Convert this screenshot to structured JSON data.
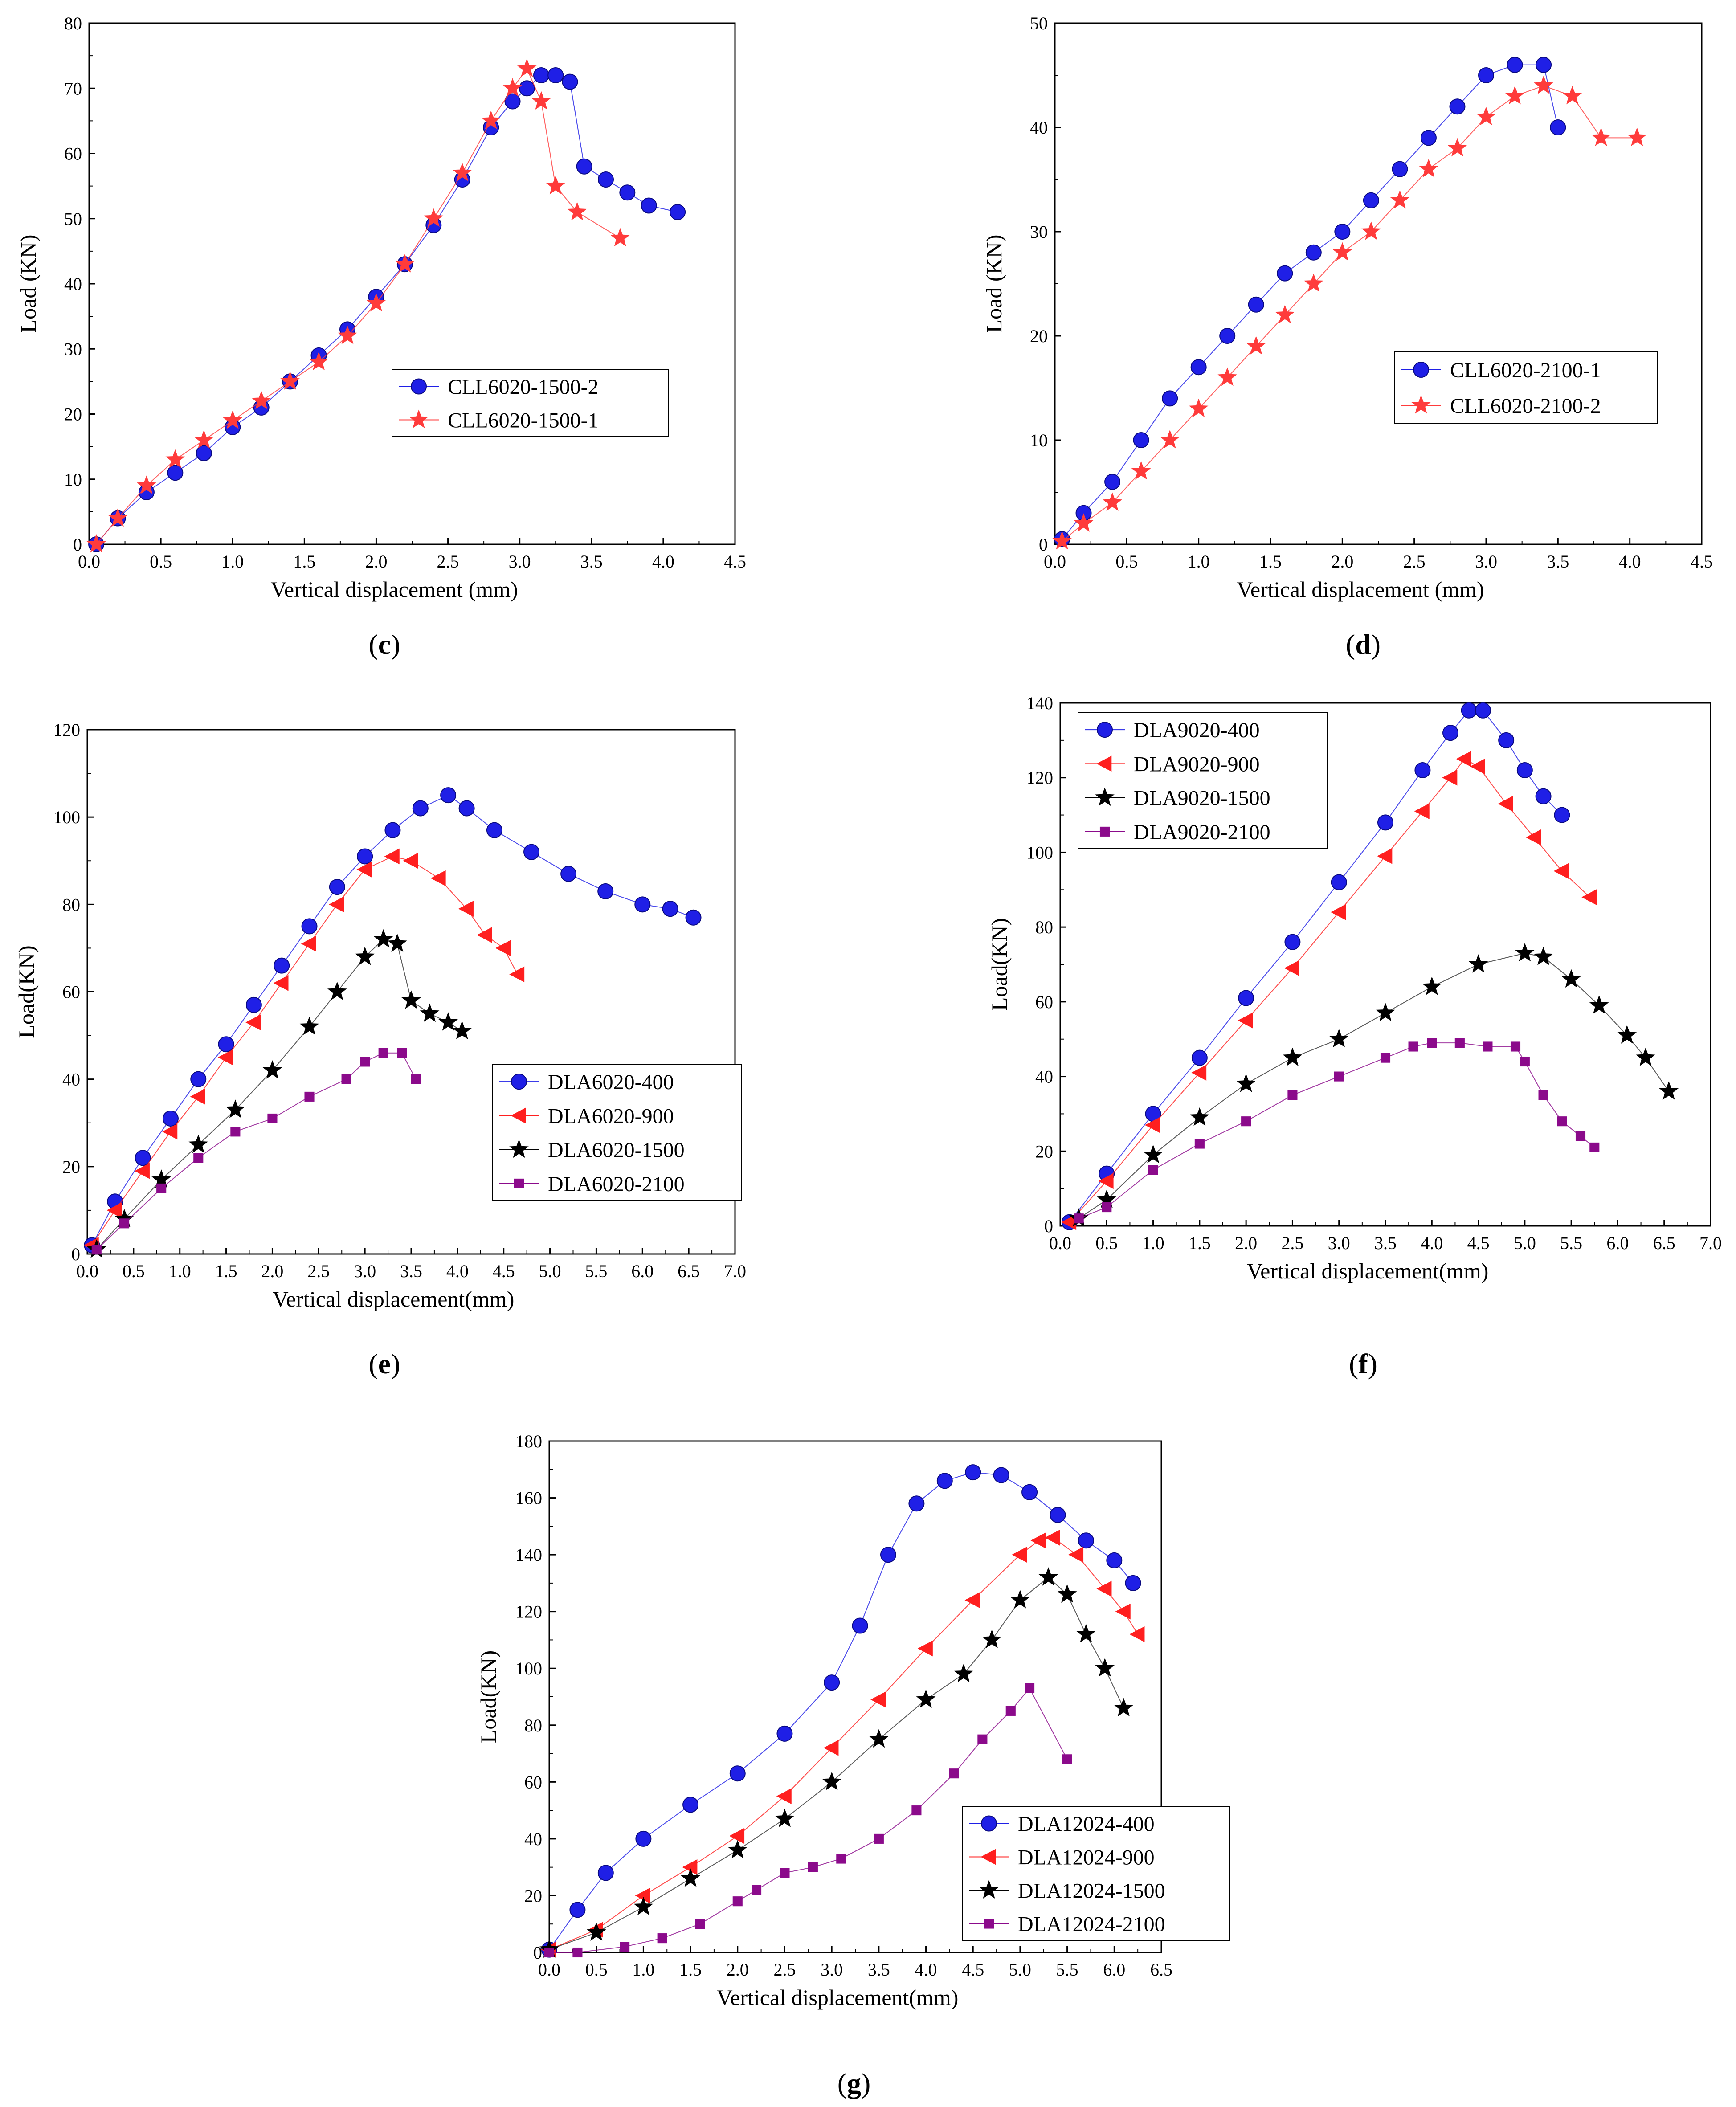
{
  "chart_data": [
    {
      "type": "line",
      "panel": "c",
      "xlabel": "Vertical displacement (mm)",
      "ylabel": "Load (KN)",
      "xlim": [
        0,
        4.5
      ],
      "ylim": [
        0,
        80
      ],
      "xticks": [
        0.0,
        0.5,
        1.0,
        1.5,
        2.0,
        2.5,
        3.0,
        3.5,
        4.0,
        4.5
      ],
      "xtick_labels": [
        "0.0",
        "0.5",
        "1.0",
        "1.5",
        "2.0",
        "2.5",
        "3.0",
        "3.5",
        "4.0",
        "4.5"
      ],
      "yticks": [
        0,
        10,
        20,
        30,
        40,
        50,
        60,
        70,
        80
      ],
      "ytick_labels": [
        "0",
        "10",
        "20",
        "30",
        "40",
        "50",
        "60",
        "70",
        "80"
      ],
      "legend_position": "center-right",
      "series": [
        {
          "name": "CLL6020-1500-2",
          "color": "#1f1fe6",
          "marker": "circle",
          "x": [
            0.05,
            0.2,
            0.4,
            0.6,
            0.8,
            1.0,
            1.2,
            1.4,
            1.6,
            1.8,
            2.0,
            2.2,
            2.4,
            2.6,
            2.8,
            2.95,
            3.05,
            3.15,
            3.25,
            3.35,
            3.45,
            3.6,
            3.75,
            3.9,
            4.1
          ],
          "y": [
            0,
            4,
            8,
            11,
            14,
            18,
            21,
            25,
            29,
            33,
            38,
            43,
            49,
            56,
            64,
            68,
            70,
            72,
            72,
            71,
            58,
            56,
            54,
            52,
            51
          ]
        },
        {
          "name": "CLL6020-1500-1",
          "color": "#ff3b3b",
          "marker": "star",
          "x": [
            0.05,
            0.2,
            0.4,
            0.6,
            0.8,
            1.0,
            1.2,
            1.4,
            1.6,
            1.8,
            2.0,
            2.2,
            2.4,
            2.6,
            2.8,
            2.95,
            3.05,
            3.15,
            3.25,
            3.4,
            3.7
          ],
          "y": [
            0,
            4,
            9,
            13,
            16,
            19,
            22,
            25,
            28,
            32,
            37,
            43,
            50,
            57,
            65,
            70,
            73,
            68,
            55,
            51,
            47
          ]
        }
      ]
    },
    {
      "type": "line",
      "panel": "d",
      "xlabel": "Vertical displacement (mm)",
      "ylabel": "Load (KN)",
      "xlim": [
        0,
        4.5
      ],
      "ylim": [
        0,
        50
      ],
      "xticks": [
        0.0,
        0.5,
        1.0,
        1.5,
        2.0,
        2.5,
        3.0,
        3.5,
        4.0,
        4.5
      ],
      "xtick_labels": [
        "0.0",
        "0.5",
        "1.0",
        "1.5",
        "2.0",
        "2.5",
        "3.0",
        "3.5",
        "4.0",
        "4.5"
      ],
      "yticks": [
        0,
        10,
        20,
        30,
        40,
        50
      ],
      "ytick_labels": [
        "0",
        "10",
        "20",
        "30",
        "40",
        "50"
      ],
      "legend_position": "center-right",
      "series": [
        {
          "name": "CLL6020-2100-1",
          "color": "#1f1fe6",
          "marker": "circle",
          "x": [
            0.05,
            0.2,
            0.4,
            0.6,
            0.8,
            1.0,
            1.2,
            1.4,
            1.6,
            1.8,
            2.0,
            2.2,
            2.4,
            2.6,
            2.8,
            3.0,
            3.2,
            3.4,
            3.5
          ],
          "y": [
            0.5,
            3,
            6,
            10,
            14,
            17,
            20,
            23,
            26,
            28,
            30,
            33,
            36,
            39,
            42,
            45,
            46,
            46,
            40
          ]
        },
        {
          "name": "CLL6020-2100-2",
          "color": "#ff3b3b",
          "marker": "star",
          "x": [
            0.05,
            0.2,
            0.4,
            0.6,
            0.8,
            1.0,
            1.2,
            1.4,
            1.6,
            1.8,
            2.0,
            2.2,
            2.4,
            2.6,
            2.8,
            3.0,
            3.2,
            3.4,
            3.6,
            3.8,
            4.05
          ],
          "y": [
            0.3,
            2,
            4,
            7,
            10,
            13,
            16,
            19,
            22,
            25,
            28,
            30,
            33,
            36,
            38,
            41,
            43,
            44,
            43,
            39,
            39
          ]
        }
      ]
    },
    {
      "type": "line",
      "panel": "e",
      "xlabel": "Vertical displacement(mm)",
      "ylabel": "Load(KN)",
      "xlim": [
        0,
        7.0
      ],
      "ylim": [
        0,
        120
      ],
      "xticks": [
        0.0,
        0.5,
        1.0,
        1.5,
        2.0,
        2.5,
        3.0,
        3.5,
        4.0,
        4.5,
        5.0,
        5.5,
        6.0,
        6.5,
        7.0
      ],
      "xtick_labels": [
        "0.0",
        "0.5",
        "1.0",
        "1.5",
        "2.0",
        "2.5",
        "3.0",
        "3.5",
        "4.0",
        "4.5",
        "5.0",
        "5.5",
        "6.0",
        "6.5",
        "7.0"
      ],
      "yticks": [
        0,
        20,
        40,
        60,
        80,
        100,
        120
      ],
      "ytick_labels": [
        "0",
        "20",
        "40",
        "60",
        "80",
        "100",
        "120"
      ],
      "legend_position": "bottom-center",
      "series": [
        {
          "name": "DLA6020-400",
          "color": "#1f1fe6",
          "marker": "circle",
          "x": [
            0.05,
            0.3,
            0.6,
            0.9,
            1.2,
            1.5,
            1.8,
            2.1,
            2.4,
            2.7,
            3.0,
            3.3,
            3.6,
            3.9,
            4.1,
            4.4,
            4.8,
            5.2,
            5.6,
            6.0,
            6.3,
            6.55
          ],
          "y": [
            2,
            12,
            22,
            31,
            40,
            48,
            57,
            66,
            75,
            84,
            91,
            97,
            102,
            105,
            102,
            97,
            92,
            87,
            83,
            80,
            79,
            77
          ]
        },
        {
          "name": "DLA6020-900",
          "color": "#ff1f1f",
          "marker": "triangle-left",
          "x": [
            0.05,
            0.3,
            0.6,
            0.9,
            1.2,
            1.5,
            1.8,
            2.1,
            2.4,
            2.7,
            3.0,
            3.3,
            3.5,
            3.8,
            4.1,
            4.3,
            4.5,
            4.65
          ],
          "y": [
            2,
            10,
            19,
            28,
            36,
            45,
            53,
            62,
            71,
            80,
            88,
            91,
            90,
            86,
            79,
            73,
            70,
            64
          ]
        },
        {
          "name": "DLA6020-1500",
          "color": "#000000",
          "marker": "star",
          "x": [
            0.1,
            0.4,
            0.8,
            1.2,
            1.6,
            2.0,
            2.4,
            2.7,
            3.0,
            3.2,
            3.35,
            3.5,
            3.7,
            3.9,
            4.05
          ],
          "y": [
            1,
            8,
            17,
            25,
            33,
            42,
            52,
            60,
            68,
            72,
            71,
            58,
            55,
            53,
            51
          ]
        },
        {
          "name": "DLA6020-2100",
          "color": "#8b0a8b",
          "marker": "square",
          "x": [
            0.1,
            0.4,
            0.8,
            1.2,
            1.6,
            2.0,
            2.4,
            2.8,
            3.0,
            3.2,
            3.4,
            3.55
          ],
          "y": [
            1,
            7,
            15,
            22,
            28,
            31,
            36,
            40,
            44,
            46,
            46,
            40
          ]
        }
      ]
    },
    {
      "type": "line",
      "panel": "f",
      "xlabel": "Vertical displacement(mm)",
      "ylabel": "Load(KN)",
      "xlim": [
        0,
        7.0
      ],
      "ylim": [
        0,
        140
      ],
      "xticks": [
        0.0,
        0.5,
        1.0,
        1.5,
        2.0,
        2.5,
        3.0,
        3.5,
        4.0,
        4.5,
        5.0,
        5.5,
        6.0,
        6.5,
        7.0
      ],
      "xtick_labels": [
        "0.0",
        "0.5",
        "1.0",
        "1.5",
        "2.0",
        "2.5",
        "3.0",
        "3.5",
        "4.0",
        "4.5",
        "5.0",
        "5.5",
        "6.0",
        "6.5",
        "7.0"
      ],
      "yticks": [
        0,
        20,
        40,
        60,
        80,
        100,
        120,
        140
      ],
      "ytick_labels": [
        "0",
        "20",
        "40",
        "60",
        "80",
        "100",
        "120",
        "140"
      ],
      "legend_position": "top-left",
      "series": [
        {
          "name": "DLA9020-400",
          "color": "#1f1fe6",
          "marker": "circle",
          "x": [
            0.1,
            0.5,
            1.0,
            1.5,
            2.0,
            2.5,
            3.0,
            3.5,
            3.9,
            4.2,
            4.4,
            4.55,
            4.8,
            5.0,
            5.2,
            5.4
          ],
          "y": [
            1,
            14,
            30,
            45,
            61,
            76,
            92,
            108,
            122,
            132,
            138,
            138,
            130,
            122,
            115,
            110
          ]
        },
        {
          "name": "DLA9020-900",
          "color": "#ff1f1f",
          "marker": "triangle-left",
          "x": [
            0.1,
            0.5,
            1.0,
            1.5,
            2.0,
            2.5,
            3.0,
            3.5,
            3.9,
            4.2,
            4.35,
            4.5,
            4.8,
            5.1,
            5.4,
            5.7
          ],
          "y": [
            1,
            12,
            27,
            41,
            55,
            69,
            84,
            99,
            111,
            120,
            125,
            123,
            113,
            104,
            95,
            88
          ]
        },
        {
          "name": "DLA9020-1500",
          "color": "#000000",
          "marker": "star",
          "x": [
            0.2,
            0.5,
            1.0,
            1.5,
            2.0,
            2.5,
            3.0,
            3.5,
            4.0,
            4.5,
            5.0,
            5.2,
            5.5,
            5.8,
            6.1,
            6.3,
            6.55
          ],
          "y": [
            2,
            7,
            19,
            29,
            38,
            45,
            50,
            57,
            64,
            70,
            73,
            72,
            66,
            59,
            51,
            45,
            36
          ]
        },
        {
          "name": "DLA9020-2100",
          "color": "#8b0a8b",
          "marker": "square",
          "x": [
            0.2,
            0.5,
            1.0,
            1.5,
            2.0,
            2.5,
            3.0,
            3.5,
            3.8,
            4.0,
            4.3,
            4.6,
            4.9,
            5.0,
            5.2,
            5.4,
            5.6,
            5.75
          ],
          "y": [
            2,
            5,
            15,
            22,
            28,
            35,
            40,
            45,
            48,
            49,
            49,
            48,
            48,
            44,
            35,
            28,
            24,
            21
          ]
        }
      ]
    },
    {
      "type": "line",
      "panel": "g",
      "xlabel": "Vertical displacement(mm)",
      "ylabel": "Load(KN)",
      "xlim": [
        0,
        6.5
      ],
      "ylim": [
        0,
        180
      ],
      "xticks": [
        0.0,
        0.5,
        1.0,
        1.5,
        2.0,
        2.5,
        3.0,
        3.5,
        4.0,
        4.5,
        5.0,
        5.5,
        6.0,
        6.5
      ],
      "xtick_labels": [
        "0.0",
        "0.5",
        "1.0",
        "1.5",
        "2.0",
        "2.5",
        "3.0",
        "3.5",
        "4.0",
        "4.5",
        "5.0",
        "5.5",
        "6.0",
        "6.5"
      ],
      "yticks": [
        0,
        20,
        40,
        60,
        80,
        100,
        120,
        140,
        160,
        180
      ],
      "ytick_labels": [
        "0",
        "20",
        "40",
        "60",
        "80",
        "100",
        "120",
        "140",
        "160",
        "180"
      ],
      "legend_position": "bottom-right",
      "series": [
        {
          "name": "DLA12024-400",
          "color": "#1f1fe6",
          "marker": "circle",
          "x": [
            0.0,
            0.3,
            0.6,
            1.0,
            1.5,
            2.0,
            2.5,
            3.0,
            3.3,
            3.6,
            3.9,
            4.2,
            4.5,
            4.8,
            5.1,
            5.4,
            5.7,
            6.0,
            6.2
          ],
          "y": [
            1,
            15,
            28,
            40,
            52,
            63,
            77,
            95,
            115,
            140,
            158,
            166,
            169,
            168,
            162,
            154,
            145,
            138,
            130
          ]
        },
        {
          "name": "DLA12024-900",
          "color": "#ff1f1f",
          "marker": "triangle-left",
          "x": [
            0.0,
            0.5,
            1.0,
            1.5,
            2.0,
            2.5,
            3.0,
            3.5,
            4.0,
            4.5,
            5.0,
            5.2,
            5.35,
            5.6,
            5.9,
            6.1,
            6.25
          ],
          "y": [
            1,
            8,
            20,
            30,
            41,
            55,
            72,
            89,
            107,
            124,
            140,
            145,
            146,
            140,
            128,
            120,
            112
          ]
        },
        {
          "name": "DLA12024-1500",
          "color": "#000000",
          "marker": "star",
          "x": [
            0.0,
            0.5,
            1.0,
            1.5,
            2.0,
            2.5,
            3.0,
            3.5,
            4.0,
            4.4,
            4.7,
            5.0,
            5.3,
            5.5,
            5.7,
            5.9,
            6.1
          ],
          "y": [
            1,
            7,
            16,
            26,
            36,
            47,
            60,
            75,
            89,
            98,
            110,
            124,
            132,
            126,
            112,
            100,
            86
          ]
        },
        {
          "name": "DLA12024-2100",
          "color": "#8b0a8b",
          "marker": "square",
          "x": [
            0.0,
            0.3,
            0.8,
            1.2,
            1.6,
            2.0,
            2.2,
            2.5,
            2.8,
            3.1,
            3.5,
            3.9,
            4.3,
            4.6,
            4.9,
            5.1,
            5.5
          ],
          "y": [
            0,
            0,
            2,
            5,
            10,
            18,
            22,
            28,
            30,
            33,
            40,
            50,
            63,
            75,
            85,
            93,
            68
          ]
        }
      ]
    }
  ],
  "panel_labels": {
    "c": {
      "lp": "(",
      "letter": "c",
      "rp": ")"
    },
    "d": {
      "lp": "(",
      "letter": "d",
      "rp": ")"
    },
    "e": {
      "lp": "(",
      "letter": "e",
      "rp": ")"
    },
    "f": {
      "lp": "(",
      "letter": "f",
      "rp": ")"
    },
    "g": {
      "lp": "(",
      "letter": "g",
      "rp": ")"
    }
  }
}
